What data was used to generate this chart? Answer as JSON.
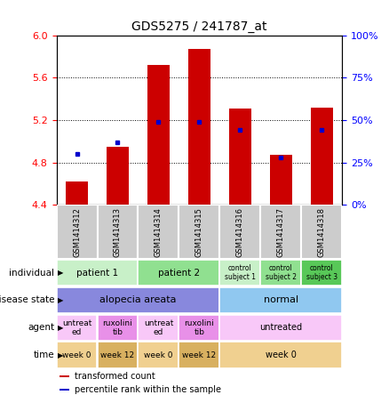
{
  "title": "GDS5275 / 241787_at",
  "samples": [
    "GSM1414312",
    "GSM1414313",
    "GSM1414314",
    "GSM1414315",
    "GSM1414316",
    "GSM1414317",
    "GSM1414318"
  ],
  "transformed_count": [
    4.62,
    4.95,
    5.72,
    5.87,
    5.31,
    4.87,
    5.32
  ],
  "percentile_rank": [
    30,
    37,
    49,
    49,
    44,
    28,
    44
  ],
  "ylim_left": [
    4.4,
    6.0
  ],
  "yticks_left": [
    4.4,
    4.8,
    5.2,
    5.6,
    6.0
  ],
  "ylim_right": [
    0,
    100
  ],
  "yticks_right": [
    0,
    25,
    50,
    75,
    100
  ],
  "bar_color": "#cc0000",
  "dot_color": "#0000cc",
  "bar_width": 0.55,
  "annotation_rows": [
    {
      "label": "individual",
      "cells": [
        {
          "text": "patient 1",
          "span": 2,
          "color": "#c8f0c8",
          "fontsize": 7.5
        },
        {
          "text": "patient 2",
          "span": 2,
          "color": "#90e090",
          "fontsize": 7.5
        },
        {
          "text": "control\nsubject 1",
          "span": 1,
          "color": "#c8f0c8",
          "fontsize": 5.5
        },
        {
          "text": "control\nsubject 2",
          "span": 1,
          "color": "#90e090",
          "fontsize": 5.5
        },
        {
          "text": "control\nsubject 3",
          "span": 1,
          "color": "#58c858",
          "fontsize": 5.5
        }
      ]
    },
    {
      "label": "disease state",
      "cells": [
        {
          "text": "alopecia areata",
          "span": 4,
          "color": "#8888dd",
          "fontsize": 8
        },
        {
          "text": "normal",
          "span": 3,
          "color": "#90c8f0",
          "fontsize": 8
        }
      ]
    },
    {
      "label": "agent",
      "cells": [
        {
          "text": "untreat\ned",
          "span": 1,
          "color": "#f8c8f8",
          "fontsize": 6.5
        },
        {
          "text": "ruxolini\ntib",
          "span": 1,
          "color": "#e890e8",
          "fontsize": 6.5
        },
        {
          "text": "untreat\ned",
          "span": 1,
          "color": "#f8c8f8",
          "fontsize": 6.5
        },
        {
          "text": "ruxolini\ntib",
          "span": 1,
          "color": "#e890e8",
          "fontsize": 6.5
        },
        {
          "text": "untreated",
          "span": 3,
          "color": "#f8c8f8",
          "fontsize": 7
        }
      ]
    },
    {
      "label": "time",
      "cells": [
        {
          "text": "week 0",
          "span": 1,
          "color": "#f0d090",
          "fontsize": 6.5
        },
        {
          "text": "week 12",
          "span": 1,
          "color": "#d8b060",
          "fontsize": 6.5
        },
        {
          "text": "week 0",
          "span": 1,
          "color": "#f0d090",
          "fontsize": 6.5
        },
        {
          "text": "week 12",
          "span": 1,
          "color": "#d8b060",
          "fontsize": 6.5
        },
        {
          "text": "week 0",
          "span": 3,
          "color": "#f0d090",
          "fontsize": 7
        }
      ]
    }
  ],
  "legend_items": [
    {
      "color": "#cc0000",
      "label": "transformed count"
    },
    {
      "color": "#0000cc",
      "label": "percentile rank within the sample"
    }
  ],
  "sample_box_color": "#cccccc",
  "fig_width": 4.38,
  "fig_height": 4.53,
  "dpi": 100
}
